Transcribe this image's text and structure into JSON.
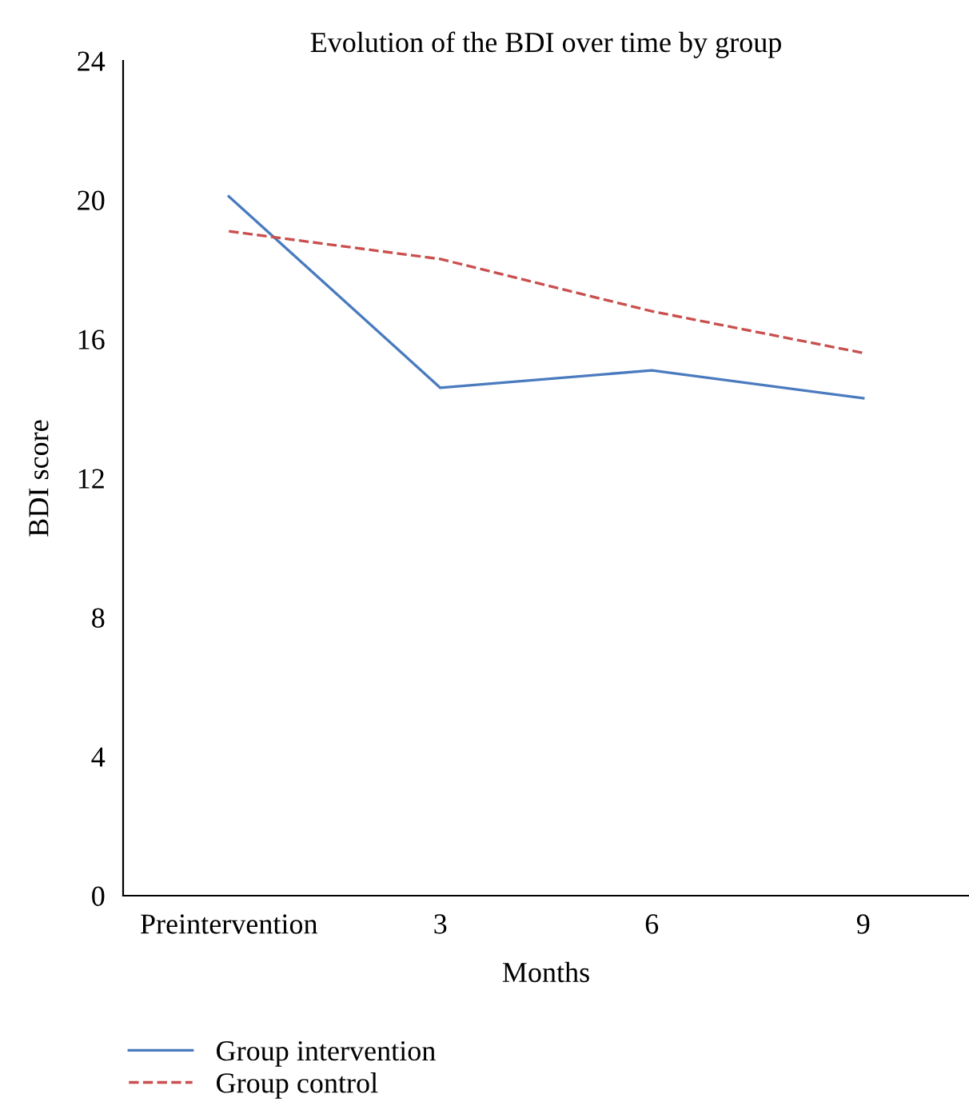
{
  "chart_data": {
    "type": "line",
    "title": "Evolution of the BDI over time by group",
    "xlabel": "Months",
    "ylabel": "BDI score",
    "categories": [
      "Preintervention",
      "3",
      "6",
      "9"
    ],
    "series": [
      {
        "name": "Group intervention",
        "color": "#4a7bbf",
        "line_style": "solid",
        "values": [
          20.1,
          14.6,
          15.1,
          14.3
        ]
      },
      {
        "name": "Group control",
        "color": "#c9504f",
        "line_style": "dashed",
        "values": [
          19.1,
          18.3,
          16.8,
          15.6
        ]
      }
    ],
    "ylim": [
      0,
      24
    ],
    "yticks": [
      0,
      4,
      8,
      12,
      16,
      20,
      24
    ],
    "grid": false,
    "legend": "bottom left",
    "marker": "none"
  }
}
